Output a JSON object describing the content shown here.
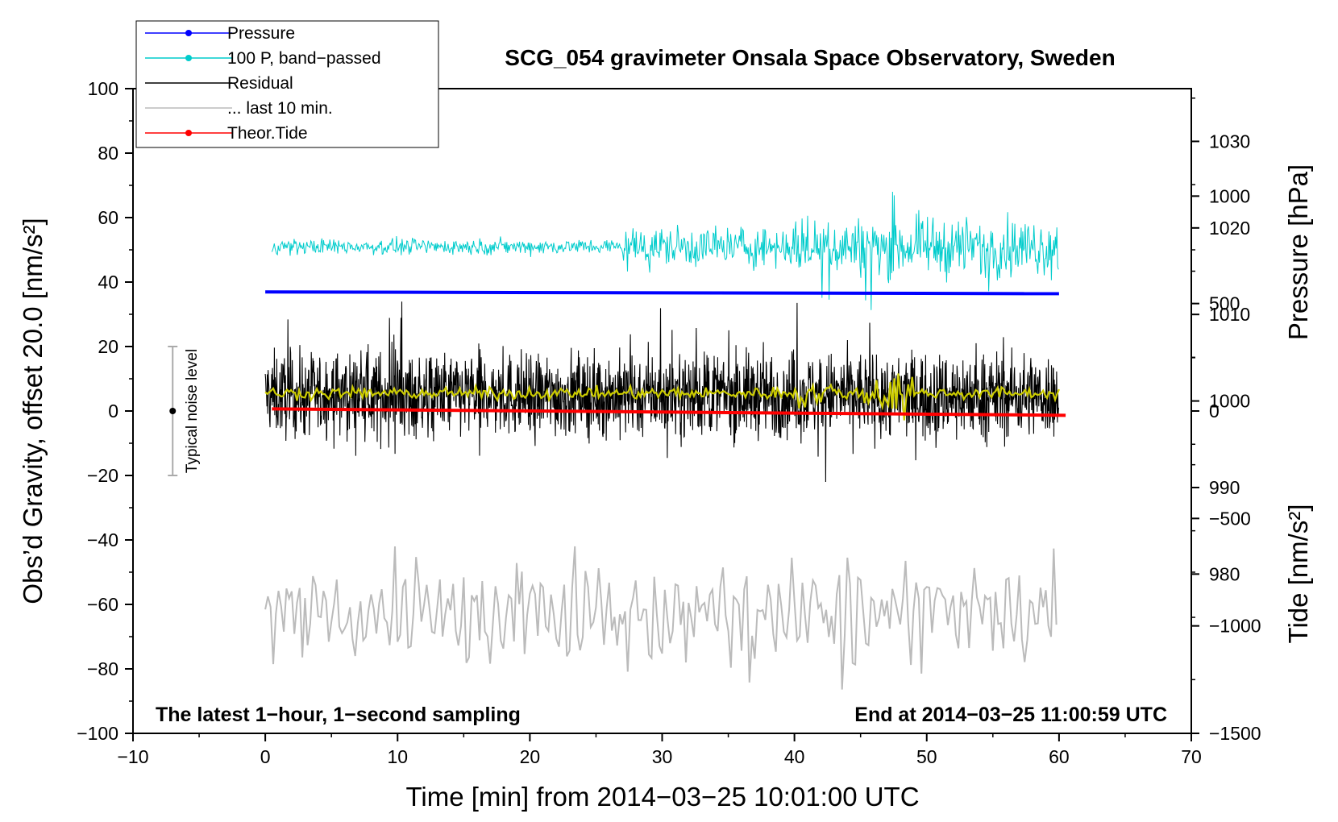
{
  "chart_data": {
    "type": "line",
    "title": "SCG_054 gravimeter Onsala Space Observatory, Sweden",
    "xlabel": "Time [min] from 2014−03−25 10:01:00 UTC",
    "ylabel": "Obs’d Gravity, offset 20.0 [nm/s²]",
    "y2label_pressure": "Pressure [hPa]",
    "y2label_tide": "Tide [nm/s²]",
    "xlim": [
      -10,
      70
    ],
    "ylim": [
      -100,
      100
    ],
    "pressure_lim": [
      961.5,
      1036
    ],
    "tide_lim": [
      -1500,
      1500
    ],
    "x_ticks": [
      "−10",
      "0",
      "10",
      "20",
      "30",
      "40",
      "50",
      "60",
      "70"
    ],
    "x_tick_values": [
      -10,
      0,
      10,
      20,
      30,
      40,
      50,
      60,
      70
    ],
    "y_ticks": [
      "100",
      "80",
      "60",
      "40",
      "20",
      "0",
      "−20",
      "−40",
      "−60",
      "−80",
      "−100"
    ],
    "y_tick_values": [
      100,
      80,
      60,
      40,
      20,
      0,
      -20,
      -40,
      -60,
      -80,
      -100
    ],
    "pressure_ticks": [
      "1030",
      "1020",
      "1010",
      "1000",
      "990",
      "980"
    ],
    "pressure_tick_values": [
      1030,
      1020,
      1010,
      1000,
      990,
      980
    ],
    "tide_ticks": [
      "1000",
      "500",
      "0",
      "−500",
      "−1000",
      "−1500"
    ],
    "tide_tick_values": [
      1000,
      500,
      0,
      -500,
      -1000,
      -1500
    ],
    "legend": [
      {
        "label": "Pressure",
        "color": "#0000ff",
        "marker": true
      },
      {
        "label": "100 P, band−passed",
        "color": "#00cccc",
        "marker": true
      },
      {
        "label": "Residual",
        "color": "#000000",
        "marker": false
      },
      {
        "label": "... last 10 min.",
        "color": "#bbbbbb",
        "marker": false
      },
      {
        "label": "Theor.Tide",
        "color": "#ff0000",
        "marker": true
      }
    ],
    "noise_bar": {
      "label": "Typical noise level",
      "x": -7,
      "center": 0,
      "low": -20,
      "high": 20
    },
    "footer_left": "The latest 1−hour, 1−second sampling",
    "footer_right": "End at 2014−03−25 11:00:59 UTC",
    "series": [
      {
        "name": "Pressure",
        "axis": "pressure",
        "color": "#0000ff",
        "x": [
          0,
          60
        ],
        "values": [
          1012.6,
          1012.4
        ]
      },
      {
        "name": "100 P, band−passed",
        "axis": "gravity",
        "color": "#00cccc",
        "x_range": [
          0.5,
          60
        ],
        "baseline": 51,
        "amplitude": "approx ±3 (0–27 min), ±8–12 (27–60 min), peaks 25–68"
      },
      {
        "name": "Residual",
        "axis": "gravity",
        "color": "#000000",
        "x_range": [
          0,
          60
        ],
        "baseline": 5,
        "amplitude": "approx ±15, range −22 to 35"
      },
      {
        "name": "Residual smoothed",
        "axis": "gravity",
        "color": "#cccc00",
        "x_range": [
          0,
          60
        ],
        "baseline": 5.5
      },
      {
        "name": "... last 10 min.",
        "axis": "gravity",
        "color": "#bbbbbb",
        "x_range": [
          0,
          60
        ],
        "baseline": -63,
        "amplitude": "approx ±10, range −90 to −42"
      },
      {
        "name": "Theor.Tide",
        "axis": "tide",
        "color": "#ff0000",
        "x": [
          0.5,
          60.5
        ],
        "values": [
          10,
          -20
        ]
      }
    ]
  }
}
